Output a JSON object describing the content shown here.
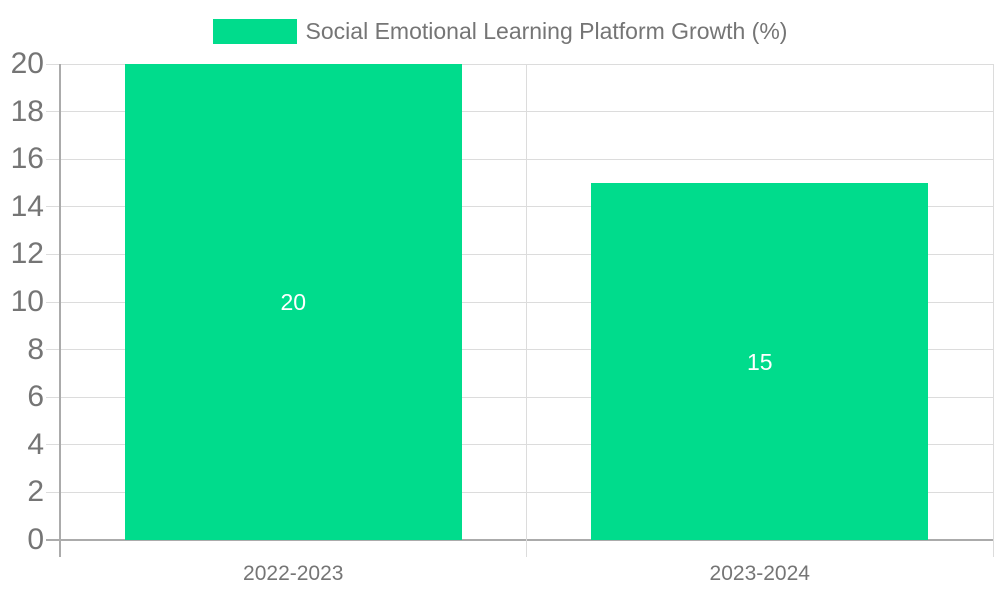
{
  "chart_data": {
    "type": "bar",
    "title": "Social Emotional Learning Platform Growth (%)",
    "categories": [
      "2022-2023",
      "2023-2024"
    ],
    "series": [
      {
        "name": "Social Emotional Learning Platform Growth (%)",
        "values": [
          20,
          15
        ],
        "color": "#00DC8C"
      }
    ],
    "bar_value_labels": [
      20,
      15
    ],
    "xlabel": "",
    "ylabel": "",
    "ylim": [
      0,
      20
    ],
    "ytick_step": 2,
    "ytick_labels": [
      "0",
      "2",
      "4",
      "6",
      "8",
      "10",
      "12",
      "14",
      "16",
      "18",
      "20"
    ],
    "grid": true,
    "legend_position": "top"
  },
  "colors": {
    "bar": "#00DC8C",
    "bar_value_label": "#FFFFFF",
    "axis_line": "#ABABAB",
    "gridline": "#DCDCDC",
    "label_text": "#757575",
    "background": "#FFFFFF"
  }
}
